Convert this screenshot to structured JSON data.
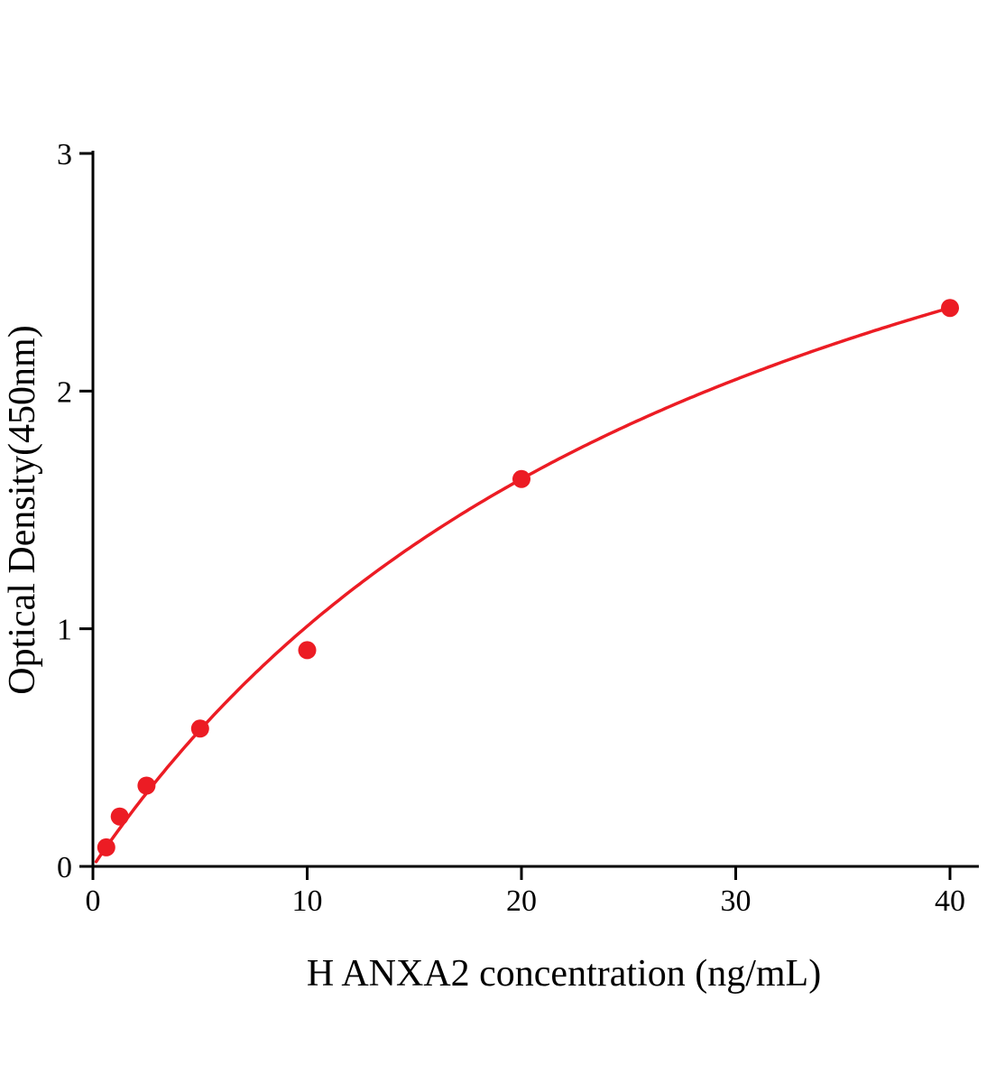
{
  "chart_data": {
    "type": "scatter",
    "title": "",
    "xlabel": "H ANXA2 concentration (ng/mL)",
    "ylabel": "Optical Density(450nm)",
    "xlim": [
      0,
      41.3
    ],
    "ylim": [
      0,
      3
    ],
    "x_ticks": [
      0,
      10,
      20,
      30,
      40
    ],
    "y_ticks": [
      0,
      1,
      2,
      3
    ],
    "grid": false,
    "legend": "none",
    "points": [
      {
        "x": 0.625,
        "y": 0.08
      },
      {
        "x": 1.25,
        "y": 0.21
      },
      {
        "x": 2.5,
        "y": 0.34
      },
      {
        "x": 5,
        "y": 0.58
      },
      {
        "x": 10,
        "y": 0.91
      },
      {
        "x": 20,
        "y": 1.63
      },
      {
        "x": 40,
        "y": 2.35
      }
    ],
    "fit_curve": {
      "type": "michaelis_menten",
      "vmax": 4.21,
      "km": 31.65,
      "x_start": 0.15,
      "x_end": 40
    },
    "colors": {
      "series": "#ec1c24",
      "axis": "#000000"
    }
  }
}
